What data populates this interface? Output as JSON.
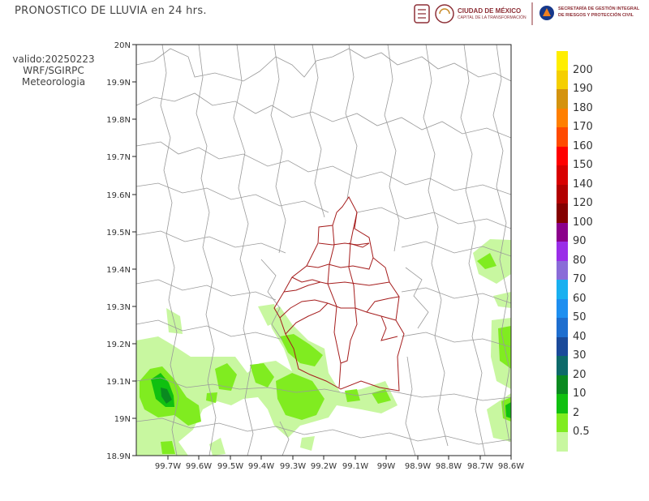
{
  "title": "PRONOSTICO DE LLUVIA en 24 hrs.",
  "valid_lines": [
    "valido:20250223",
    "WRF/SGIRPC",
    "Meteorologia"
  ],
  "logos": {
    "cdmx_line1": "CIUDAD DE MÉXICO",
    "cdmx_line2": "CAPITAL DE LA TRANSFORMACIÓN",
    "sgirpc_line1": "SECRETARÍA DE GESTIÓN INTEGRAL",
    "sgirpc_line2": "DE RIESGOS Y PROTECCIÓN CIVIL"
  },
  "map": {
    "lat_ticks": [
      "20N",
      "19.9N",
      "19.8N",
      "19.7N",
      "19.6N",
      "19.5N",
      "19.4N",
      "19.3N",
      "19.2N",
      "19.1N",
      "19N",
      "18.9N"
    ],
    "lon_ticks": [
      "99.7W",
      "99.6W",
      "99.5W",
      "99.4W",
      "99.3W",
      "99.2W",
      "99.1W",
      "99W",
      "98.9W",
      "98.8W",
      "98.7W",
      "98.6W"
    ]
  },
  "legend": {
    "labels": [
      "200",
      "190",
      "180",
      "170",
      "160",
      "150",
      "140",
      "120",
      "100",
      "90",
      "80",
      "70",
      "60",
      "50",
      "40",
      "30",
      "20",
      "10",
      "2",
      "0.5"
    ],
    "colors": [
      "#ffee00",
      "#f5cf00",
      "#d4930e",
      "#ff7f00",
      "#ff4a00",
      "#ff0000",
      "#d80000",
      "#b20000",
      "#840000",
      "#8b008b",
      "#9a2ee8",
      "#8a6cd8",
      "#19b0f0",
      "#1e8ff0",
      "#1e6ecf",
      "#1a4a9a",
      "#0d6a6a",
      "#0a8a20",
      "#10c010",
      "#80ec20",
      "#c8f7a0"
    ]
  }
}
